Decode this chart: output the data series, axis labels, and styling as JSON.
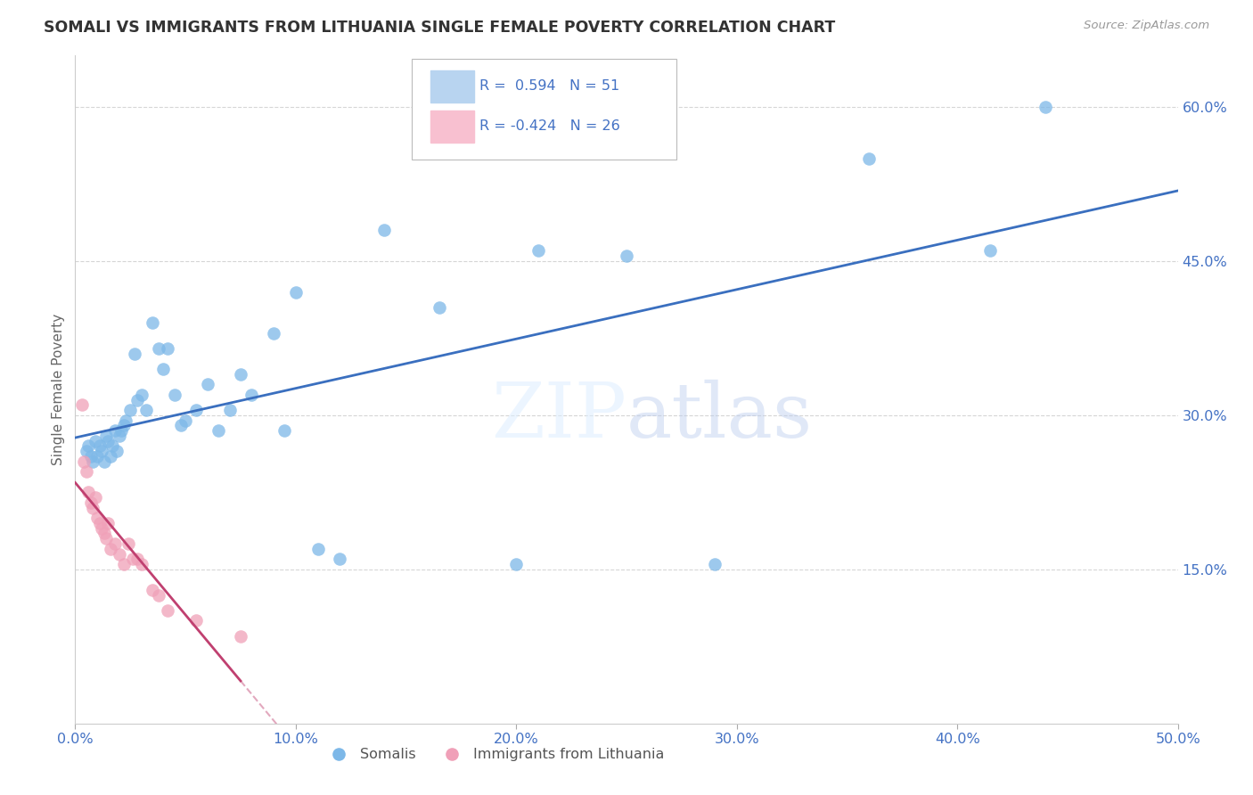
{
  "title": "SOMALI VS IMMIGRANTS FROM LITHUANIA SINGLE FEMALE POVERTY CORRELATION CHART",
  "source": "Source: ZipAtlas.com",
  "ylabel": "Single Female Poverty",
  "xlim": [
    0.0,
    0.5
  ],
  "ylim": [
    0.0,
    0.65
  ],
  "xticks": [
    0.0,
    0.1,
    0.2,
    0.3,
    0.4,
    0.5
  ],
  "yticks": [
    0.15,
    0.3,
    0.45,
    0.6
  ],
  "xticklabels": [
    "0.0%",
    "10.0%",
    "20.0%",
    "30.0%",
    "40.0%",
    "50.0%"
  ],
  "yticklabels": [
    "15.0%",
    "30.0%",
    "45.0%",
    "60.0%"
  ],
  "somali_color": "#7db8e8",
  "lithuania_color": "#f0a0b8",
  "somali_line_color": "#3a6fbf",
  "lithuania_line_color": "#c04070",
  "somali_x": [
    0.005,
    0.006,
    0.007,
    0.008,
    0.009,
    0.01,
    0.011,
    0.012,
    0.013,
    0.014,
    0.015,
    0.016,
    0.017,
    0.018,
    0.019,
    0.02,
    0.021,
    0.022,
    0.023,
    0.025,
    0.027,
    0.028,
    0.03,
    0.032,
    0.035,
    0.038,
    0.04,
    0.042,
    0.045,
    0.048,
    0.05,
    0.055,
    0.06,
    0.065,
    0.07,
    0.075,
    0.08,
    0.09,
    0.095,
    0.1,
    0.11,
    0.12,
    0.14,
    0.165,
    0.2,
    0.21,
    0.25,
    0.29,
    0.36,
    0.415,
    0.44
  ],
  "somali_y": [
    0.265,
    0.27,
    0.26,
    0.255,
    0.275,
    0.26,
    0.27,
    0.265,
    0.255,
    0.28,
    0.275,
    0.26,
    0.27,
    0.285,
    0.265,
    0.28,
    0.285,
    0.29,
    0.295,
    0.305,
    0.36,
    0.315,
    0.32,
    0.305,
    0.39,
    0.365,
    0.345,
    0.365,
    0.32,
    0.29,
    0.295,
    0.305,
    0.33,
    0.285,
    0.305,
    0.34,
    0.32,
    0.38,
    0.285,
    0.42,
    0.17,
    0.16,
    0.48,
    0.405,
    0.155,
    0.46,
    0.455,
    0.155,
    0.55,
    0.46,
    0.6
  ],
  "lithuania_x": [
    0.003,
    0.004,
    0.005,
    0.006,
    0.007,
    0.008,
    0.009,
    0.01,
    0.011,
    0.012,
    0.013,
    0.014,
    0.015,
    0.016,
    0.018,
    0.02,
    0.022,
    0.024,
    0.026,
    0.028,
    0.03,
    0.035,
    0.038,
    0.042,
    0.055,
    0.075
  ],
  "lithuania_y": [
    0.31,
    0.255,
    0.245,
    0.225,
    0.215,
    0.21,
    0.22,
    0.2,
    0.195,
    0.19,
    0.185,
    0.18,
    0.195,
    0.17,
    0.175,
    0.165,
    0.155,
    0.175,
    0.16,
    0.16,
    0.155,
    0.13,
    0.125,
    0.11,
    0.1,
    0.085
  ],
  "background_color": "#ffffff",
  "grid_color": "#bbbbbb"
}
